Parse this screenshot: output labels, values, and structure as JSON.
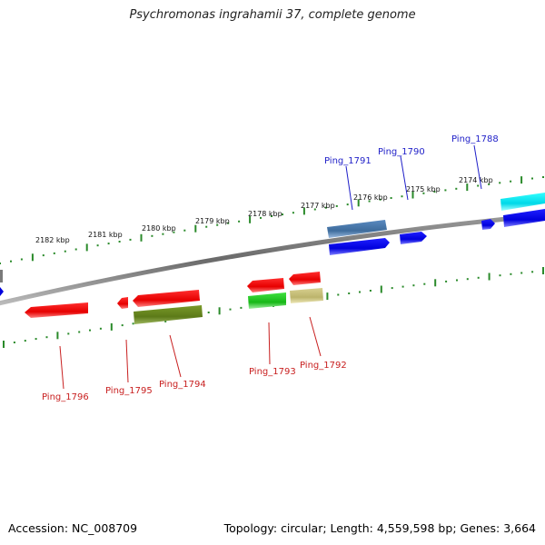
{
  "title": "Psychromonas ingrahamii 37, complete genome",
  "footer": {
    "accession_label": "Accession:",
    "accession": "NC_008709",
    "topology_label": "Topology:",
    "topology": "circular",
    "length_label": "Length:",
    "length": "4,559,598 bp",
    "genes_label": "Genes:",
    "genes": "3,664"
  },
  "colors": {
    "backbone": "#8a8a8a",
    "tick": "#2a8a2a",
    "forward_label": "#1f1fc8",
    "reverse_label": "#c81f1f"
  },
  "scale_labels": [
    "2182 kbp",
    "2181 kbp",
    "2180 kbp",
    "2179 kbp",
    "2178 kbp",
    "2177 kbp",
    "2176 kbp",
    "2175 kbp",
    "2174 kbp"
  ],
  "forward_gene_labels": [
    "Ping_1791",
    "Ping_1790",
    "Ping_1788"
  ],
  "reverse_gene_labels": [
    "Ping_1796",
    "Ping_1795",
    "Ping_1794",
    "Ping_1793",
    "Ping_1792"
  ]
}
